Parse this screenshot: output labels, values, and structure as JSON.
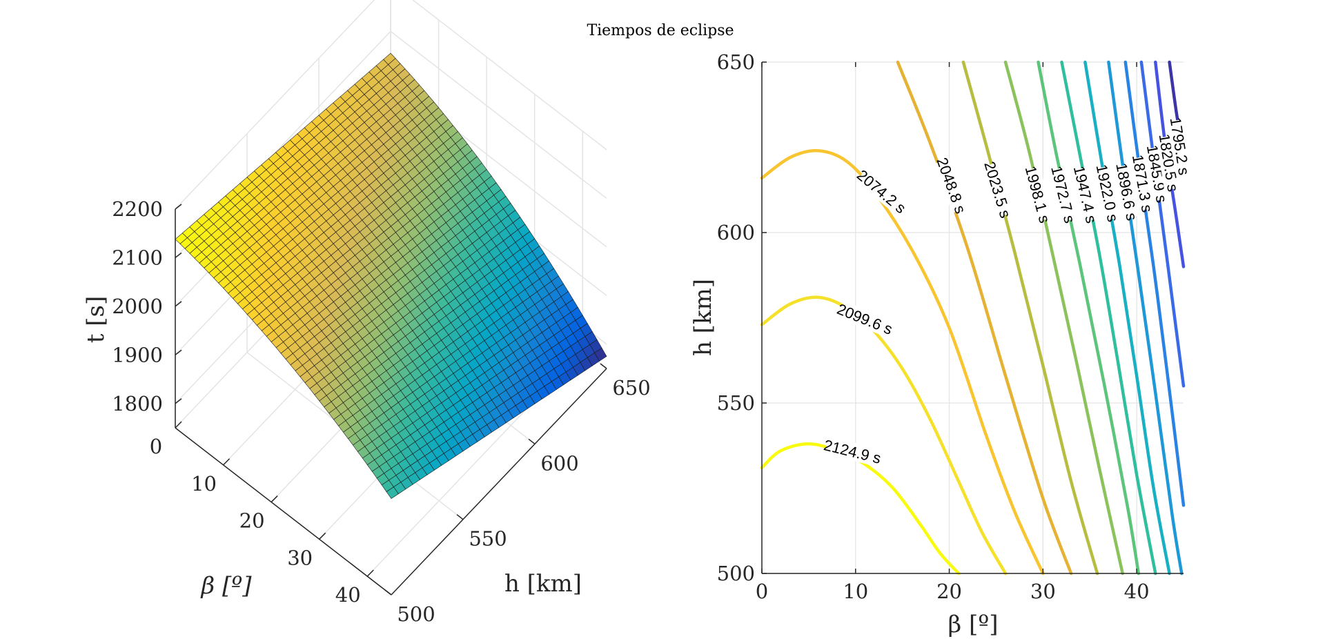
{
  "figure": {
    "title": "Tiempos de eclipse"
  },
  "colors": {
    "axis": "#262626",
    "grid": "#e4e4e4",
    "mesh_edge": "#1a1a1a",
    "colormap": [
      "#440154",
      "#3e4a89",
      "#31688e",
      "#26828e",
      "#1f9e89",
      "#35b779",
      "#6ece58",
      "#b5de2b",
      "#fde725"
    ],
    "parula": [
      "#352a87",
      "#0363e1",
      "#1485d4",
      "#06a7c6",
      "#38b99e",
      "#92bf73",
      "#d9ba56",
      "#fcce2e",
      "#f9fb0e"
    ]
  },
  "chart_data": [
    {
      "type": "surface",
      "name": "surface-3d",
      "xlabel": "β [º]",
      "ylabel": "h [km]",
      "zlabel": "t [s]",
      "xlim": [
        0,
        45
      ],
      "ylim": [
        500,
        650
      ],
      "zlim": [
        1750,
        2200
      ],
      "x_ticks": [
        0,
        10,
        20,
        30,
        40
      ],
      "y_ticks": [
        500,
        550,
        600,
        650
      ],
      "z_ticks": [
        1800,
        1900,
        2000,
        2100,
        2200
      ],
      "x_tick_labels": [
        "0",
        "10",
        "20",
        "30",
        "40"
      ],
      "y_tick_labels": [
        "500",
        "550",
        "600",
        "650"
      ],
      "z_tick_labels": [
        "1800",
        "1900",
        "2000",
        "2100",
        "2200"
      ],
      "corner_values": {
        "beta0_h500": 2138,
        "beta0_h650": 2055,
        "beta45_h500": 1948,
        "beta45_h650": 1775
      },
      "grid": {
        "beta_steps": 46,
        "h_steps": 31
      },
      "grid_on": true
    },
    {
      "type": "contour",
      "name": "contour-2d",
      "xlabel": "β [º]",
      "ylabel": "h [km]",
      "xlim": [
        0,
        45
      ],
      "ylim": [
        500,
        650
      ],
      "x_ticks": [
        0,
        10,
        20,
        30,
        40
      ],
      "y_ticks": [
        500,
        550,
        600,
        650
      ],
      "x_tick_labels": [
        "0",
        "10",
        "20",
        "30",
        "40"
      ],
      "y_tick_labels": [
        "500",
        "550",
        "600",
        "650"
      ],
      "grid_on": true,
      "levels": [
        {
          "label": "2124.9 s",
          "color": "#f9fb0e",
          "points": [
            [
              0,
              531
            ],
            [
              2,
              536
            ],
            [
              5,
              538
            ],
            [
              8,
              536
            ],
            [
              11,
              532
            ],
            [
              14,
              525
            ],
            [
              17,
              514
            ],
            [
              19,
              506
            ],
            [
              21,
              500
            ]
          ]
        },
        {
          "label": "2099.6 s",
          "color": "#f5e02a",
          "points": [
            [
              0,
              573
            ],
            [
              3,
              579
            ],
            [
              6,
              581
            ],
            [
              9,
              578
            ],
            [
              12,
              571
            ],
            [
              15,
              560
            ],
            [
              18,
              545
            ],
            [
              21,
              527
            ],
            [
              23.5,
              512
            ],
            [
              26,
              500
            ]
          ]
        },
        {
          "label": "2074.2 s",
          "color": "#f8c530",
          "points": [
            [
              0,
              616
            ],
            [
              3,
              622
            ],
            [
              6,
              624
            ],
            [
              9,
              621
            ],
            [
              12,
              612
            ],
            [
              16,
              595
            ],
            [
              20,
              572
            ],
            [
              24,
              540
            ],
            [
              27,
              518
            ],
            [
              30,
              500
            ]
          ]
        },
        {
          "label": "2048.8 s",
          "color": "#e6b234",
          "points": [
            [
              14.5,
              650
            ],
            [
              18,
              626
            ],
            [
              22,
              595
            ],
            [
              26,
              558
            ],
            [
              30,
              522
            ],
            [
              33,
              500
            ]
          ]
        },
        {
          "label": "2023.5 s",
          "color": "#b6bd40",
          "points": [
            [
              21.5,
              650
            ],
            [
              24,
              625
            ],
            [
              27,
              594
            ],
            [
              30,
              561
            ],
            [
              33,
              527
            ],
            [
              35.8,
              500
            ]
          ]
        },
        {
          "label": "1998.1 s",
          "color": "#8cc25c",
          "points": [
            [
              26,
              650
            ],
            [
              28.5,
              624
            ],
            [
              31,
              594
            ],
            [
              33.5,
              563
            ],
            [
              36,
              531
            ],
            [
              38.5,
              500
            ]
          ]
        },
        {
          "label": "1972.7 s",
          "color": "#5dc47c",
          "points": [
            [
              29.5,
              650
            ],
            [
              31.5,
              622
            ],
            [
              34,
              590
            ],
            [
              36.5,
              556
            ],
            [
              39,
              520
            ],
            [
              40.2,
              500
            ]
          ]
        },
        {
          "label": "1947.4 s",
          "color": "#2fbf9f",
          "points": [
            [
              32,
              650
            ],
            [
              34,
              622
            ],
            [
              36,
              594
            ],
            [
              38,
              562
            ],
            [
              40,
              529
            ],
            [
              42,
              500
            ]
          ]
        },
        {
          "label": "1922.0 s",
          "color": "#19b0c4",
          "points": [
            [
              34.5,
              650
            ],
            [
              36.3,
              620
            ],
            [
              38.2,
              590
            ],
            [
              40,
              558
            ],
            [
              41.8,
              525
            ],
            [
              43.5,
              500
            ]
          ]
        },
        {
          "label": "1896.6 s",
          "color": "#1f98d8",
          "points": [
            [
              37,
              650
            ],
            [
              38.5,
              620
            ],
            [
              40.2,
              588
            ],
            [
              42,
              553
            ],
            [
              43.8,
              517
            ],
            [
              44.8,
              500
            ]
          ]
        },
        {
          "label": "1871.3 s",
          "color": "#2a83e2",
          "points": [
            [
              38.8,
              650
            ],
            [
              40.2,
              621
            ],
            [
              41.8,
              590
            ],
            [
              43.3,
              558
            ],
            [
              45,
              520
            ]
          ]
        },
        {
          "label": "1845.9 s",
          "color": "#3a6ae6",
          "points": [
            [
              40.5,
              650
            ],
            [
              41.8,
              622
            ],
            [
              43.2,
              593
            ],
            [
              45,
              555
            ]
          ]
        },
        {
          "label": "1820.5 s",
          "color": "#4652e0",
          "points": [
            [
              42,
              650
            ],
            [
              43,
              627
            ],
            [
              44.2,
              605
            ],
            [
              45,
              590
            ]
          ]
        },
        {
          "label": "1795.2 s",
          "color": "#3d35a6",
          "points": [
            [
              43.5,
              650
            ],
            [
              44.2,
              636
            ],
            [
              45,
              622
            ]
          ]
        }
      ]
    }
  ]
}
